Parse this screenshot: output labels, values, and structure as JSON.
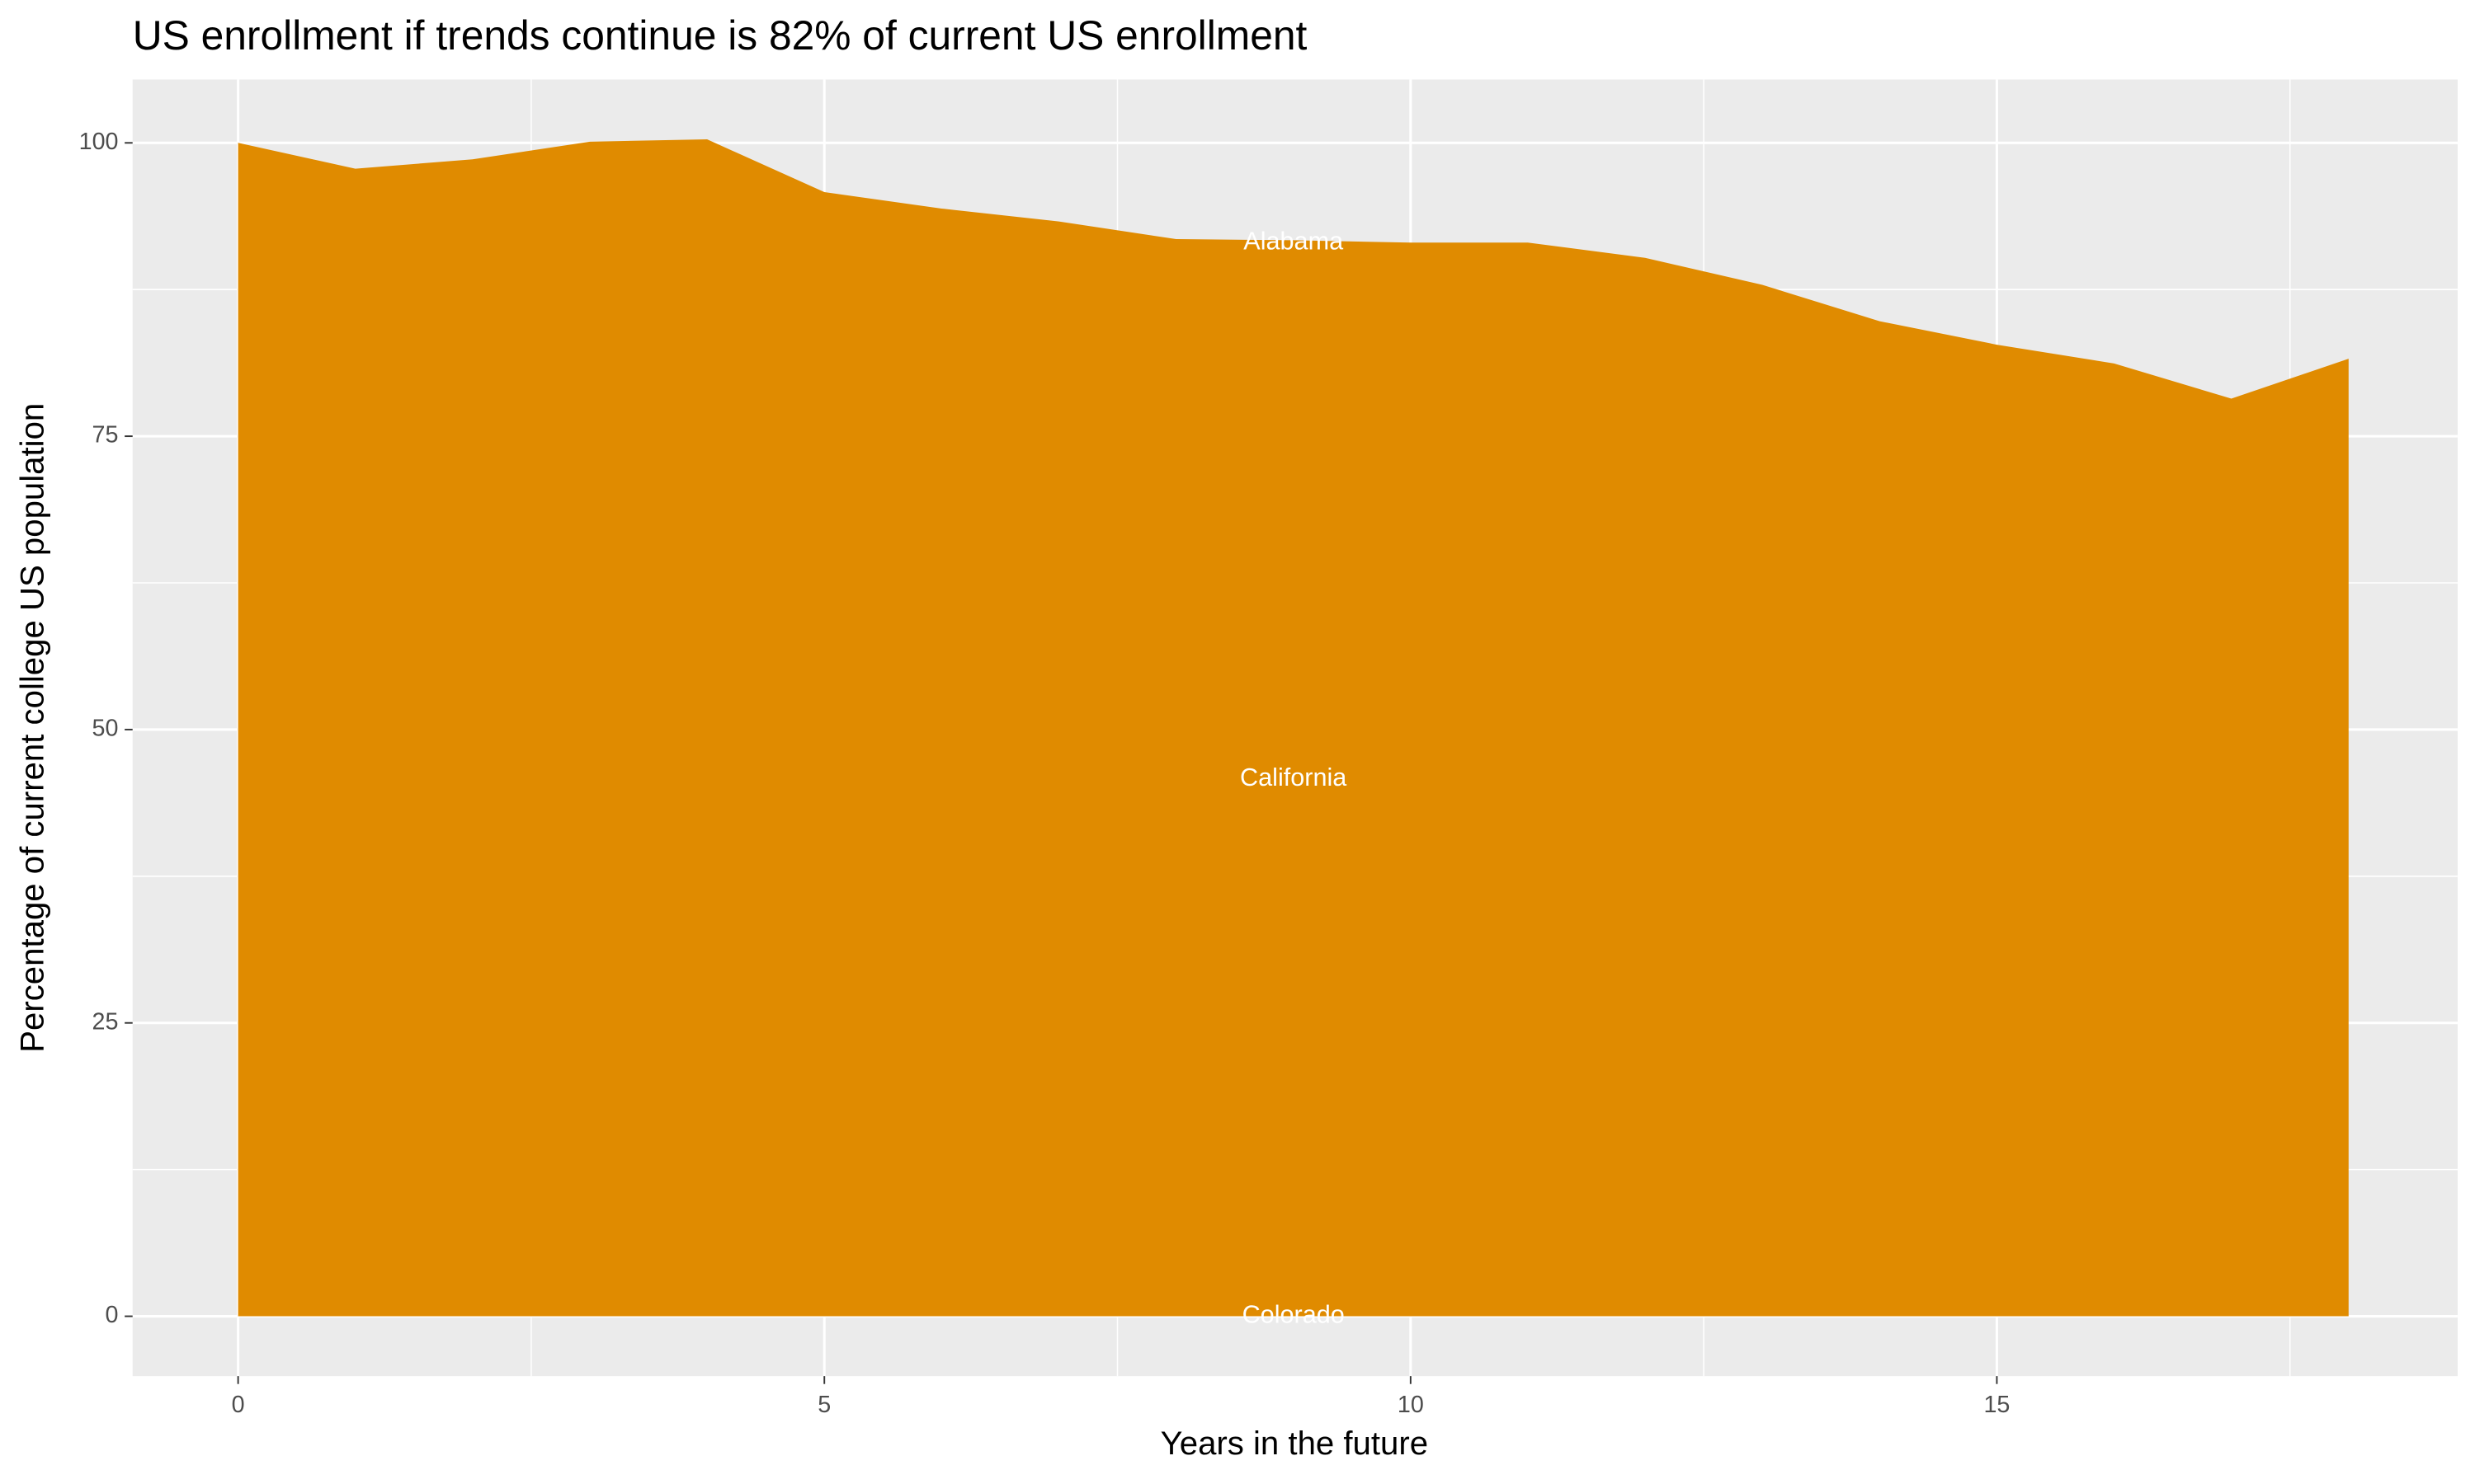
{
  "chart_data": {
    "type": "area",
    "title": "US enrollment if trends continue is 82% of current US enrollment",
    "x_label": "Years in the future",
    "y_label": "Percentage of current college US population",
    "x": [
      0,
      1,
      2,
      3,
      4,
      5,
      6,
      7,
      8,
      9,
      10,
      11,
      12,
      13,
      14,
      15,
      16,
      17,
      18
    ],
    "series": [
      {
        "color": "#e08b00",
        "values": [
          100,
          97.8,
          98.6,
          100.1,
          100.3,
          95.8,
          94.4,
          93.3,
          91.8,
          91.7,
          91.5,
          91.5,
          90.2,
          87.9,
          84.8,
          82.8,
          81.2,
          78.2,
          81.6
        ]
      }
    ],
    "annotations": [
      {
        "text": "Alabama",
        "x": 9,
        "y": 91.5
      },
      {
        "text": "California",
        "x": 9,
        "y": 45.8
      },
      {
        "text": "Colorado",
        "x": 9,
        "y": 0
      }
    ],
    "xlim": [
      -0.9,
      18.93
    ],
    "ylim": [
      -5.1,
      105.4
    ],
    "xticks": [
      0,
      5,
      10,
      15
    ],
    "yticks": [
      0,
      25,
      50,
      75,
      100
    ],
    "grid": true
  }
}
